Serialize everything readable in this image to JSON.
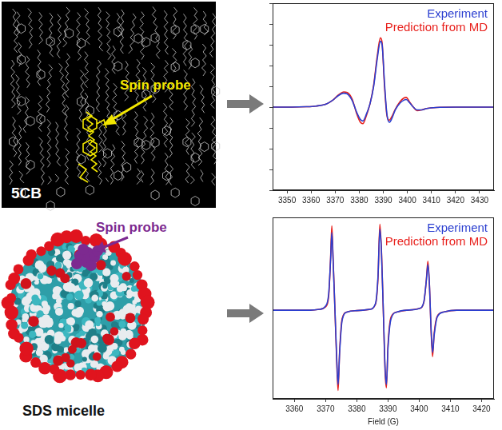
{
  "chart_data": [
    {
      "type": "line",
      "xlim": [
        3344,
        3436
      ],
      "xticks": [
        3350,
        3360,
        3370,
        3380,
        3390,
        3400,
        3410,
        3420,
        3430
      ],
      "ylim": [
        -1.2,
        1.5
      ],
      "yticks": [
        -1.2,
        -0.9,
        -0.6,
        -0.3,
        0,
        0.3,
        0.6,
        0.9,
        1.2,
        1.5
      ],
      "tick_labels": "x",
      "grid": false,
      "legend": "top-right",
      "x": [
        3344,
        3352,
        3358,
        3362,
        3366,
        3369,
        3371.5,
        3373.5,
        3375,
        3377,
        3379,
        3380.5,
        3381.5,
        3383,
        3384.5,
        3386,
        3387.5,
        3388.8,
        3389.5,
        3390.5,
        3391.5,
        3392.5,
        3393.5,
        3395,
        3397,
        3398.5,
        3399.5,
        3401,
        3402.5,
        3404,
        3406,
        3408,
        3412,
        3420,
        3428,
        3436
      ],
      "series": [
        {
          "name": "Experiment",
          "color": "#2b3fd0",
          "values": [
            0,
            0,
            0.005,
            0.015,
            0.04,
            0.1,
            0.17,
            0.2,
            0.19,
            0.1,
            -0.08,
            -0.18,
            -0.2,
            -0.1,
            0.05,
            0.3,
            0.7,
            0.95,
            0.9,
            0.35,
            -0.1,
            -0.22,
            -0.17,
            -0.04,
            0.06,
            0.1,
            0.11,
            0.06,
            0,
            -0.04,
            -0.04,
            -0.02,
            -0.005,
            0,
            0,
            0
          ]
        },
        {
          "name": "Prediction from MD",
          "color": "#e8201c",
          "values": [
            0,
            0,
            0.005,
            0.015,
            0.04,
            0.1,
            0.18,
            0.22,
            0.21,
            0.12,
            -0.1,
            -0.22,
            -0.24,
            -0.12,
            0.05,
            0.32,
            0.74,
            1.0,
            0.93,
            0.3,
            -0.12,
            -0.19,
            -0.14,
            -0.03,
            0.08,
            0.13,
            0.14,
            0.07,
            0,
            -0.05,
            -0.04,
            -0.02,
            -0.005,
            0,
            0,
            0
          ]
        }
      ]
    },
    {
      "type": "line",
      "x_label": "Field (G)",
      "xlim": [
        3353,
        3424
      ],
      "xticks": [
        3360,
        3370,
        3380,
        3390,
        3400,
        3410,
        3420
      ],
      "ylim": [
        -1.05,
        1.1
      ],
      "tick_labels": "x",
      "grid": false,
      "legend": "top-right",
      "x": [
        3353,
        3365,
        3368,
        3370,
        3371,
        3371.6,
        3372,
        3372.4,
        3373,
        3373.6,
        3374,
        3374.5,
        3375.3,
        3377,
        3380,
        3384,
        3386,
        3386.8,
        3387.4,
        3387.9,
        3388.5,
        3389.1,
        3389.5,
        3390,
        3391,
        3393,
        3396,
        3400,
        3401.5,
        3402.3,
        3402.8,
        3403.3,
        3403.8,
        3404.3,
        3404.8,
        3405.8,
        3408,
        3412,
        3424
      ],
      "series": [
        {
          "name": "Experiment",
          "color": "#2b3fd0",
          "values": [
            0,
            0,
            0.01,
            0.05,
            0.2,
            0.6,
            0.92,
            0.6,
            0,
            -0.6,
            -0.88,
            -0.5,
            -0.12,
            -0.02,
            -0.005,
            0.01,
            0.08,
            0.4,
            0.96,
            0.7,
            0,
            -0.7,
            -0.88,
            -0.45,
            -0.1,
            -0.02,
            0,
            0.02,
            0.1,
            0.35,
            0.54,
            0.3,
            -0.2,
            -0.5,
            -0.3,
            -0.08,
            -0.02,
            0,
            0
          ]
        },
        {
          "name": "Prediction from MD",
          "color": "#e8201c",
          "values": [
            0,
            0,
            0.01,
            0.04,
            0.17,
            0.62,
            1.0,
            0.62,
            0,
            -0.65,
            -0.95,
            -0.48,
            -0.1,
            -0.02,
            -0.005,
            0.01,
            0.07,
            0.38,
            1.02,
            0.72,
            0,
            -0.75,
            -0.92,
            -0.42,
            -0.08,
            -0.02,
            0,
            0.02,
            0.09,
            0.36,
            0.58,
            0.3,
            -0.22,
            -0.55,
            -0.28,
            -0.07,
            -0.02,
            0,
            0
          ]
        }
      ]
    }
  ],
  "figure": {
    "panels": [
      {
        "title": "5CB",
        "pointer": {
          "text": "Spin probe",
          "color": "#f2e600"
        }
      },
      {
        "title": "SDS micelle",
        "pointer": {
          "text": "Spin probe",
          "color": "#7d2a90"
        }
      }
    ]
  }
}
